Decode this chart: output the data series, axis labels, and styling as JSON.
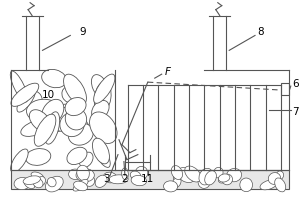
{
  "bg_color": "#ffffff",
  "line_color": "#555555",
  "line_width": 0.8,
  "fig_width": 3.0,
  "fig_height": 2.0,
  "dpi": 100,
  "font_size": 7.0,
  "font_size_label": 7.5
}
